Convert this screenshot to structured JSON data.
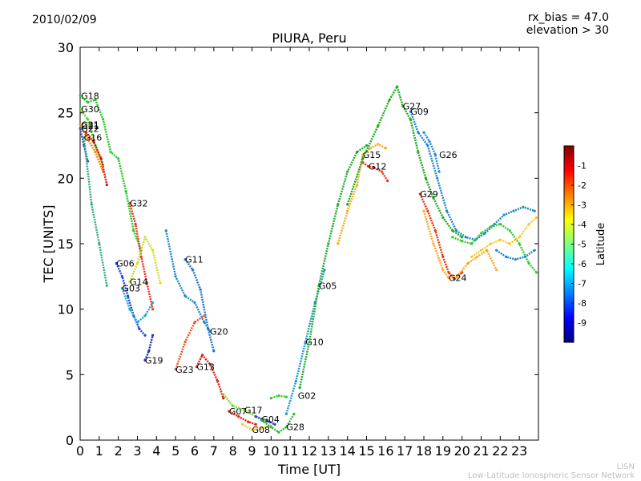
{
  "header": {
    "date": "2010/02/09",
    "rx_bias": "rx_bias = 47.0",
    "elevation": "elevation > 30"
  },
  "footer": {
    "line1": "LISN",
    "line2": "Low-Latitude Ionospheric Sensor Network"
  },
  "colorbar": {
    "label": "Latitude",
    "ticks": [
      "-1",
      "-2",
      "-3",
      "-4",
      "-5",
      "-6",
      "-7",
      "-8",
      "-9"
    ],
    "range": [
      -10,
      0
    ],
    "colormap": [
      "#00007f",
      "#0000ff",
      "#007fff",
      "#00ffff",
      "#7fff7f",
      "#ffff00",
      "#ff7f00",
      "#ff0000",
      "#7f0000"
    ]
  },
  "chart_data": {
    "type": "scatter",
    "title": "PIURA, Peru",
    "xlabel": "Time [UT]",
    "ylabel": "TEC [UNITS]",
    "xlim": [
      0,
      24
    ],
    "ylim": [
      0,
      30
    ],
    "xticks": [
      "0",
      "1",
      "2",
      "3",
      "4",
      "5",
      "6",
      "7",
      "8",
      "9",
      "10",
      "11",
      "12",
      "13",
      "14",
      "15",
      "16",
      "17",
      "18",
      "19",
      "20",
      "21",
      "22",
      "23"
    ],
    "yticks": [
      "0",
      "5",
      "10",
      "15",
      "20",
      "25",
      "30"
    ],
    "grid": false,
    "series": [
      {
        "name": "G18",
        "label_at": [
          0.05,
          26.3
        ],
        "color": "#22cc22",
        "x": [
          0,
          0.4,
          0.8,
          1.2,
          1.6,
          2.0,
          2.4,
          2.8,
          3.2
        ],
        "y": [
          26.3,
          25.8,
          26.0,
          24.5,
          22.0,
          21.5,
          19.0,
          16.0,
          14.5
        ]
      },
      {
        "name": "G30",
        "label_at": [
          0.05,
          25.3
        ],
        "color": "#55dd22",
        "x": [
          0,
          0.4,
          0.8,
          1.2
        ],
        "y": [
          25.3,
          24.5,
          22.5,
          21.0
        ]
      },
      {
        "name": "G31",
        "label_at": [
          0.05,
          24.1
        ],
        "color": "#ff8800",
        "x": [
          0,
          0.4,
          0.8,
          1.2
        ],
        "y": [
          24.1,
          23.0,
          22.0,
          20.5
        ]
      },
      {
        "name": "G21",
        "label_at": [
          0.05,
          24.0
        ],
        "color": "#dd1111",
        "x": [
          0.3,
          0.7,
          1.1,
          1.4
        ],
        "y": [
          23.5,
          22.8,
          21.5,
          19.5
        ]
      },
      {
        "name": "G22",
        "label_at": [
          0.05,
          23.8
        ],
        "color": "#3355cc",
        "x": [
          0,
          0.2,
          0.4
        ],
        "y": [
          23.8,
          22.5,
          21.3
        ]
      },
      {
        "name": "G16",
        "label_at": [
          0.2,
          23.1
        ],
        "color": "#33aa88",
        "x": [
          0.2,
          0.6,
          1.0,
          1.4
        ],
        "y": [
          23.1,
          18.0,
          15.0,
          11.8
        ]
      },
      {
        "name": "G32",
        "label_at": [
          2.6,
          18.1
        ],
        "color": "#ee3322",
        "x": [
          2.6,
          2.9,
          3.2,
          3.5,
          3.8
        ],
        "y": [
          18.1,
          16.5,
          14.0,
          12.0,
          10.0
        ]
      },
      {
        "name": "G06",
        "label_at": [
          1.9,
          13.5
        ],
        "color": "#2244dd",
        "x": [
          1.9,
          2.2,
          2.5,
          2.8,
          3.1,
          3.4
        ],
        "y": [
          13.5,
          12.5,
          11.0,
          9.5,
          8.5,
          8.0
        ]
      },
      {
        "name": "G14",
        "label_at": [
          2.6,
          12.1
        ],
        "color": "#ccdd33",
        "x": [
          2.6,
          3.0,
          3.4,
          3.8,
          4.2
        ],
        "y": [
          12.1,
          13.5,
          15.5,
          14.5,
          12.0
        ]
      },
      {
        "name": "G03",
        "label_at": [
          2.2,
          11.6
        ],
        "color": "#22aacc",
        "x": [
          2.2,
          2.6,
          3.0,
          3.4,
          3.8
        ],
        "y": [
          11.6,
          10.0,
          9.0,
          9.5,
          10.5
        ]
      },
      {
        "name": "G11",
        "label_at": [
          5.5,
          13.8
        ],
        "color": "#2277cc",
        "x": [
          5.5,
          5.9,
          6.3,
          6.7,
          7.0
        ],
        "y": [
          13.8,
          13.0,
          11.5,
          8.5,
          6.8
        ]
      },
      {
        "name": "G20",
        "label_at": [
          6.8,
          8.3
        ],
        "color": "#2288cc",
        "x": [
          4.5,
          5.0,
          5.5,
          6.0,
          6.5,
          6.8
        ],
        "y": [
          16.0,
          12.5,
          11.0,
          10.5,
          9.0,
          8.3
        ]
      },
      {
        "name": "G19",
        "label_at": [
          3.4,
          6.1
        ],
        "color": "#2233aa",
        "x": [
          3.4,
          3.6,
          3.8
        ],
        "y": [
          6.1,
          6.8,
          8.0
        ]
      },
      {
        "name": "G23",
        "label_at": [
          5.0,
          5.4
        ],
        "color": "#ee5522",
        "x": [
          5.0,
          5.5,
          6.0,
          6.5
        ],
        "y": [
          5.4,
          7.5,
          9.0,
          9.5
        ]
      },
      {
        "name": "G13",
        "label_at": [
          6.1,
          5.6
        ],
        "color": "#dd2211",
        "x": [
          6.1,
          6.4,
          6.8,
          7.2,
          7.5
        ],
        "y": [
          5.6,
          6.5,
          5.8,
          4.5,
          3.2
        ]
      },
      {
        "name": "G07",
        "label_at": [
          7.8,
          2.2
        ],
        "color": "#dd2211",
        "x": [
          7.8,
          8.3,
          8.8,
          9.2
        ],
        "y": [
          2.2,
          1.8,
          1.4,
          1.2
        ]
      },
      {
        "name": "G17",
        "label_at": [
          8.6,
          2.3
        ],
        "color": "#77dd33",
        "x": [
          7.5,
          8.0,
          8.6,
          9.2,
          9.8
        ],
        "y": [
          3.5,
          2.6,
          2.3,
          1.8,
          1.5
        ]
      },
      {
        "name": "G04",
        "label_at": [
          9.5,
          1.6
        ],
        "color": "#3344cc",
        "x": [
          9.2,
          9.5,
          9.9,
          10.2
        ],
        "y": [
          1.8,
          1.6,
          1.4,
          1.2
        ]
      },
      {
        "name": "G08",
        "label_at": [
          9.0,
          0.8
        ],
        "color": "#ffcc22",
        "x": [
          8.5,
          9.0,
          9.5,
          10.0
        ],
        "y": [
          1.2,
          0.8,
          0.9,
          1.1
        ]
      },
      {
        "name": "G28",
        "label_at": [
          10.8,
          1.0
        ],
        "color": "#33bb33",
        "x": [
          9.5,
          10.0,
          10.4,
          10.8,
          11.2
        ],
        "y": [
          1.5,
          1.0,
          0.6,
          1.0,
          2.0
        ]
      },
      {
        "name": "G02",
        "label_at": [
          11.4,
          3.4
        ],
        "color": "#33cc33",
        "x": [
          10.0,
          10.4,
          10.8
        ],
        "y": [
          3.2,
          3.4,
          3.3
        ]
      },
      {
        "name": "G10",
        "label_at": [
          11.8,
          7.5
        ],
        "color": "#2299cc",
        "x": [
          10.8,
          11.3,
          11.8,
          12.3,
          12.8
        ],
        "y": [
          2.0,
          4.5,
          7.5,
          10.5,
          13.0
        ]
      },
      {
        "name": "G05",
        "label_at": [
          12.5,
          11.8
        ],
        "color": "#22aa33",
        "x": [
          11.5,
          12.0,
          12.5,
          13.0,
          13.5,
          14.0,
          14.5,
          15.0
        ],
        "y": [
          4.0,
          7.5,
          11.8,
          15.0,
          18.0,
          20.5,
          22.0,
          22.5
        ]
      },
      {
        "name": "G15",
        "label_at": [
          14.8,
          21.8
        ],
        "color": "#ffaa22",
        "x": [
          13.5,
          14.0,
          14.5,
          14.8,
          15.2,
          15.6,
          16.0
        ],
        "y": [
          15.0,
          17.5,
          19.5,
          21.8,
          22.3,
          22.6,
          22.3
        ]
      },
      {
        "name": "G12",
        "label_at": [
          15.1,
          20.9
        ],
        "color": "#ee3311",
        "x": [
          14.8,
          15.1,
          15.4,
          15.8,
          16.1
        ],
        "y": [
          21.2,
          20.9,
          20.8,
          20.5,
          19.8
        ]
      },
      {
        "name": "G27",
        "label_at": [
          16.9,
          25.5
        ],
        "color": "#22aa22",
        "x": [
          14.0,
          14.8,
          15.6,
          16.2,
          16.6,
          16.9,
          17.3,
          17.7,
          18.1,
          18.5,
          19.0,
          19.5,
          20.0
        ],
        "y": [
          18.0,
          21.5,
          24.0,
          26.0,
          27.0,
          25.5,
          24.5,
          22.0,
          20.0,
          18.5,
          17.0,
          16.0,
          15.5
        ]
      },
      {
        "name": "G09",
        "label_at": [
          17.3,
          25.1
        ],
        "color": "#2288cc",
        "x": [
          17.3,
          17.7,
          18.2,
          18.7,
          19.2,
          19.7,
          20.2,
          20.7,
          21.2,
          21.7,
          22.2,
          22.7,
          23.2,
          23.8
        ],
        "y": [
          25.1,
          23.5,
          22.5,
          20.0,
          17.5,
          16.0,
          15.5,
          15.3,
          15.8,
          16.5,
          17.2,
          17.5,
          17.8,
          17.5
        ]
      },
      {
        "name": "G26",
        "label_at": [
          18.8,
          21.8
        ],
        "color": "#3388dd",
        "x": [
          18.0,
          18.3,
          18.6,
          18.8
        ],
        "y": [
          23.5,
          22.8,
          21.8,
          20.5
        ]
      },
      {
        "name": "G29",
        "label_at": [
          17.8,
          18.8
        ],
        "color": "#ee3311",
        "x": [
          17.8,
          18.2,
          18.6,
          19.0,
          19.3,
          19.6,
          20.0
        ],
        "y": [
          18.8,
          17.5,
          16.0,
          14.0,
          12.8,
          12.3,
          12.8
        ]
      },
      {
        "name": "G24",
        "label_at": [
          19.3,
          12.4
        ],
        "color": "#ffaa22",
        "x": [
          18.0,
          18.5,
          19.0,
          19.3,
          19.8,
          20.3,
          20.8,
          21.3,
          21.8
        ],
        "y": [
          17.5,
          15.0,
          13.0,
          12.4,
          12.6,
          13.5,
          14.0,
          14.5,
          13.0
        ]
      },
      {
        "name": "",
        "label_at": null,
        "color": "#33cc33",
        "x": [
          19.5,
          20.0,
          20.5,
          21.0,
          21.5,
          22.0,
          22.5,
          23.0,
          23.5,
          23.9
        ],
        "y": [
          15.5,
          15.2,
          15.0,
          15.8,
          16.3,
          16.5,
          16.0,
          15.0,
          13.5,
          12.8
        ]
      },
      {
        "name": "",
        "label_at": null,
        "color": "#ffcc22",
        "x": [
          20.5,
          21.0,
          21.5,
          22.0,
          22.5,
          23.0,
          23.5,
          23.9
        ],
        "y": [
          14.0,
          14.5,
          15.0,
          15.3,
          15.0,
          15.5,
          16.5,
          17.0
        ]
      },
      {
        "name": "",
        "label_at": null,
        "color": "#2288cc",
        "x": [
          21.8,
          22.3,
          22.8,
          23.3,
          23.8
        ],
        "y": [
          14.5,
          14.0,
          13.8,
          14.0,
          14.5
        ]
      }
    ]
  }
}
